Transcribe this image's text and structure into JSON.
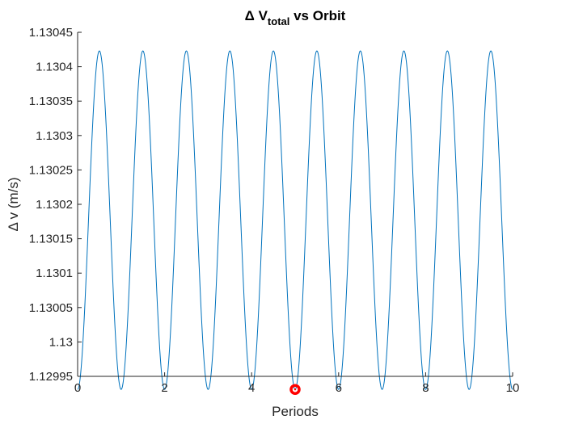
{
  "chart_data": {
    "type": "line",
    "title": {
      "prefix": "Δ V",
      "subscript": "total",
      "suffix": " vs Orbit"
    },
    "xlabel": "Periods",
    "ylabel": "Δ v (m/s)",
    "xlim": [
      0,
      10
    ],
    "ylim": [
      1.12995,
      1.13045
    ],
    "xticks": [
      0,
      2,
      4,
      6,
      8,
      10
    ],
    "xtick_labels": [
      "0",
      "2",
      "4",
      "6",
      "8",
      "10"
    ],
    "yticks": [
      1.12995,
      1.13,
      1.13005,
      1.1301,
      1.13015,
      1.1302,
      1.13025,
      1.1303,
      1.13035,
      1.1304,
      1.13045
    ],
    "ytick_labels": [
      "1.12995",
      "1.13",
      "1.13005",
      "1.1301",
      "1.13015",
      "1.1302",
      "1.13025",
      "1.1303",
      "1.13035",
      "1.1304",
      "1.13045"
    ],
    "grid": false,
    "series": [
      {
        "style": "line",
        "color": "#0072BD",
        "model": "y = mean - amplitude*cos(2*pi*x/period)",
        "mean": 1.130177,
        "amplitude": 0.000246,
        "period": 1,
        "x_range": [
          0,
          10
        ],
        "min_value": 1.129931,
        "max_value": 1.130423
      },
      {
        "style": "marker",
        "color": "#FF0000",
        "points": [
          {
            "x": 5,
            "y": 1.129931
          }
        ]
      }
    ]
  }
}
